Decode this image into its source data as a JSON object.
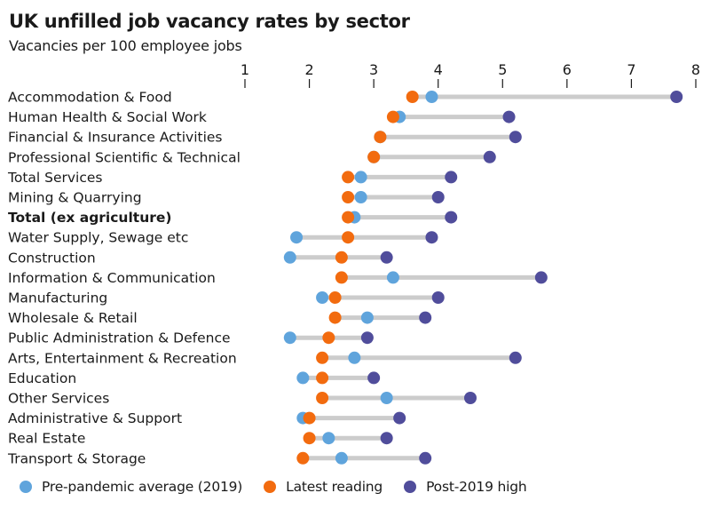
{
  "title": "UK unfilled job vacancy rates by sector",
  "subtitle": "Vacancies per 100 employee jobs",
  "colors": {
    "pre_pandemic": "#5fa4dc",
    "latest": "#f26b0f",
    "high": "#504d9b",
    "connector": "#cccccc"
  },
  "chart_data": {
    "type": "scatter",
    "title": "UK unfilled job vacancy rates by sector",
    "subtitle": "Vacancies per 100 employee jobs",
    "xlim": [
      1,
      8
    ],
    "xticks": [
      "1",
      "2",
      "3",
      "4",
      "5",
      "6",
      "7",
      "8"
    ],
    "legend_position": "bottom",
    "categories": [
      "Accommodation & Food",
      "Human Health & Social Work",
      "Financial & Insurance Activities",
      "Professional Scientific & Technical",
      "Total Services",
      "Mining & Quarrying",
      "Total (ex agriculture)",
      "Water Supply, Sewage etc",
      "Construction",
      "Information & Communication",
      "Manufacturing",
      "Wholesale & Retail",
      "Public Administration & Defence",
      "Arts, Entertainment & Recreation",
      "Education",
      "Other Services",
      "Administrative & Support",
      "Real Estate",
      "Transport & Storage"
    ],
    "bold_categories": [
      "Total (ex agriculture)"
    ],
    "series": [
      {
        "name": "Pre-pandemic average (2019)",
        "values": [
          3.9,
          3.4,
          3.1,
          3.0,
          2.8,
          2.8,
          2.7,
          1.8,
          1.7,
          3.3,
          2.2,
          2.9,
          1.7,
          2.7,
          1.9,
          3.2,
          1.9,
          2.3,
          2.5
        ]
      },
      {
        "name": "Latest reading",
        "values": [
          3.6,
          3.3,
          3.1,
          3.0,
          2.6,
          2.6,
          2.6,
          2.6,
          2.5,
          2.5,
          2.4,
          2.4,
          2.3,
          2.2,
          2.2,
          2.2,
          2.0,
          2.0,
          1.9
        ]
      },
      {
        "name": "Post-2019 high",
        "values": [
          7.7,
          5.1,
          5.2,
          4.8,
          4.2,
          4.0,
          4.2,
          3.9,
          3.2,
          5.6,
          4.0,
          3.8,
          2.9,
          5.2,
          3.0,
          4.5,
          3.4,
          3.2,
          3.8
        ]
      }
    ]
  }
}
